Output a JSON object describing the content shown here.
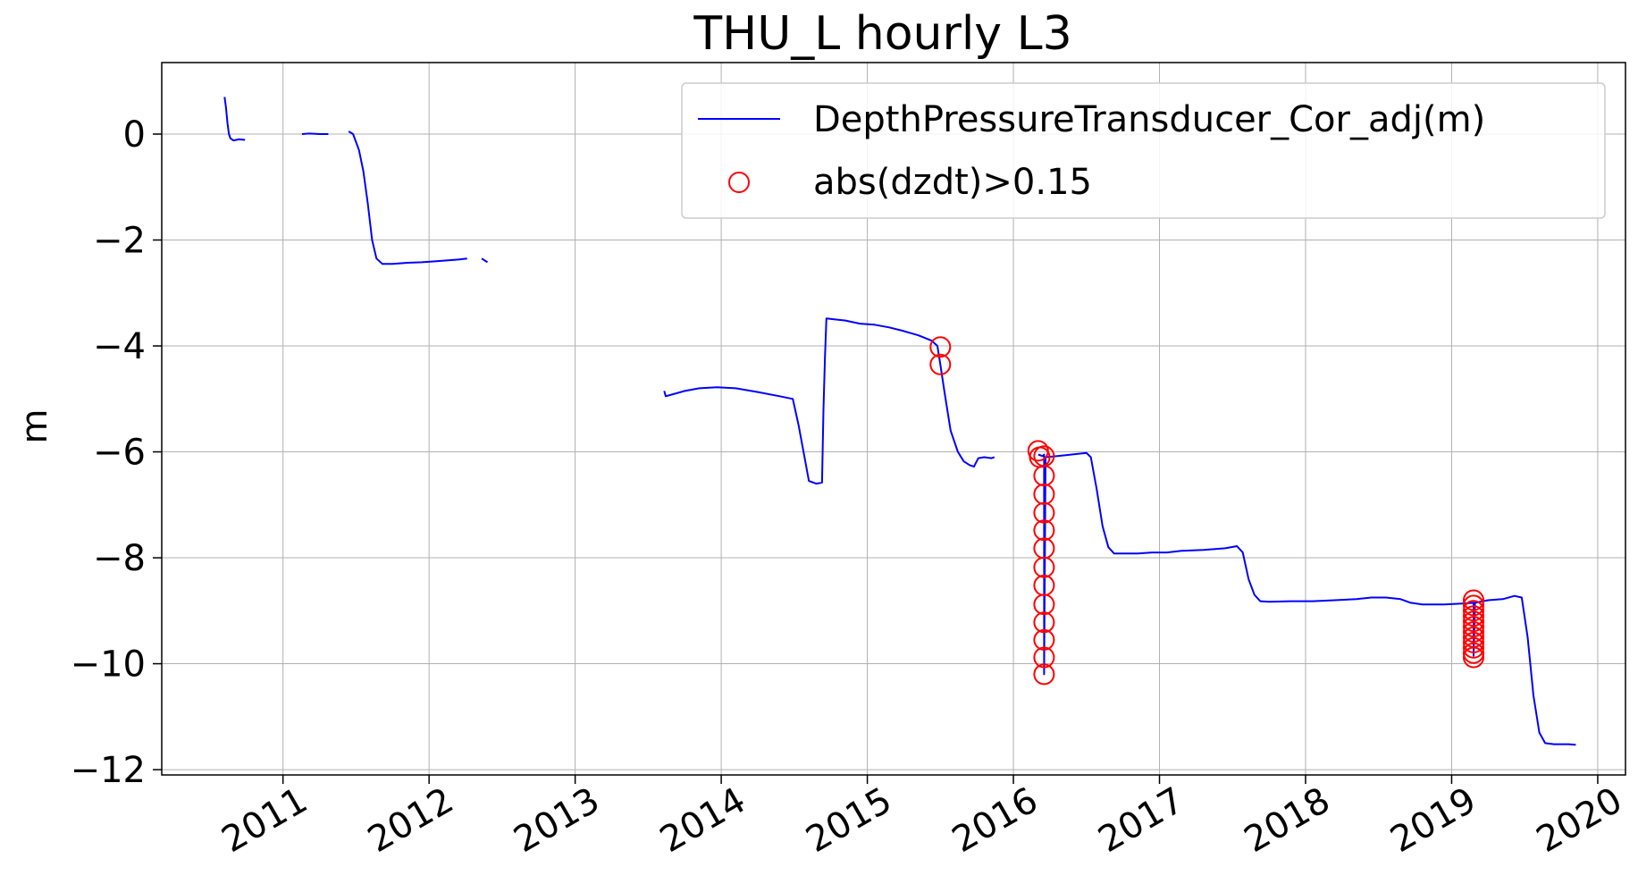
{
  "chart_data": {
    "type": "line",
    "title": "THU_L hourly L3",
    "xlabel": "",
    "ylabel": "m",
    "xlim": [
      2010.17,
      2020.19
    ],
    "ylim": [
      -12.1,
      1.35
    ],
    "x_ticks": [
      2011,
      2012,
      2013,
      2014,
      2015,
      2016,
      2017,
      2018,
      2019,
      2020
    ],
    "x_tick_labels": [
      "2011",
      "2012",
      "2013",
      "2014",
      "2015",
      "2016",
      "2017",
      "2018",
      "2019",
      "2020"
    ],
    "y_ticks": [
      0,
      -2,
      -4,
      -6,
      -8,
      -10,
      -12
    ],
    "y_tick_labels": [
      "0",
      "−2",
      "−4",
      "−6",
      "−8",
      "−10",
      "−12"
    ],
    "grid": true,
    "legend_position": "top-right",
    "colors": {
      "line": "#0000ff",
      "marker": "#ff0000",
      "grid": "#b0b0b0"
    },
    "series": [
      {
        "name": "DepthPressureTransducer_Cor_adj(m)",
        "style": "line",
        "segments": [
          [
            [
              2010.6,
              0.7
            ],
            [
              2010.61,
              0.5
            ],
            [
              2010.62,
              0.2
            ],
            [
              2010.63,
              0.0
            ],
            [
              2010.64,
              -0.08
            ],
            [
              2010.66,
              -0.12
            ],
            [
              2010.7,
              -0.1
            ],
            [
              2010.74,
              -0.11
            ]
          ],
          [
            [
              2011.13,
              0.0
            ],
            [
              2011.18,
              0.01
            ],
            [
              2011.25,
              0.0
            ],
            [
              2011.31,
              0.0
            ]
          ],
          [
            [
              2011.45,
              0.05
            ],
            [
              2011.48,
              0.0
            ],
            [
              2011.52,
              -0.3
            ],
            [
              2011.55,
              -0.7
            ],
            [
              2011.58,
              -1.3
            ],
            [
              2011.61,
              -2.0
            ],
            [
              2011.64,
              -2.35
            ],
            [
              2011.68,
              -2.45
            ],
            [
              2011.75,
              -2.45
            ],
            [
              2011.85,
              -2.43
            ],
            [
              2011.95,
              -2.42
            ],
            [
              2012.05,
              -2.4
            ],
            [
              2012.15,
              -2.38
            ],
            [
              2012.2,
              -2.37
            ],
            [
              2012.26,
              -2.35
            ]
          ],
          [
            [
              2012.36,
              -2.35
            ],
            [
              2012.4,
              -2.42
            ]
          ],
          [
            [
              2013.61,
              -4.85
            ],
            [
              2013.62,
              -4.95
            ],
            [
              2013.66,
              -4.92
            ],
            [
              2013.75,
              -4.85
            ],
            [
              2013.85,
              -4.8
            ],
            [
              2013.97,
              -4.78
            ],
            [
              2014.1,
              -4.8
            ],
            [
              2014.25,
              -4.87
            ],
            [
              2014.4,
              -4.95
            ],
            [
              2014.49,
              -5.0
            ],
            [
              2014.53,
              -5.5
            ],
            [
              2014.57,
              -6.1
            ],
            [
              2014.6,
              -6.55
            ],
            [
              2014.65,
              -6.6
            ],
            [
              2014.69,
              -6.58
            ],
            [
              2014.7,
              -5.2
            ],
            [
              2014.71,
              -4.2
            ],
            [
              2014.72,
              -3.48
            ],
            [
              2014.78,
              -3.5
            ],
            [
              2014.85,
              -3.52
            ],
            [
              2014.95,
              -3.58
            ],
            [
              2015.05,
              -3.6
            ],
            [
              2015.15,
              -3.65
            ],
            [
              2015.25,
              -3.72
            ],
            [
              2015.35,
              -3.8
            ],
            [
              2015.44,
              -3.9
            ],
            [
              2015.48,
              -4.0
            ],
            [
              2015.5,
              -4.35
            ],
            [
              2015.53,
              -4.9
            ],
            [
              2015.57,
              -5.6
            ],
            [
              2015.62,
              -6.0
            ],
            [
              2015.66,
              -6.18
            ],
            [
              2015.7,
              -6.25
            ],
            [
              2015.73,
              -6.28
            ],
            [
              2015.76,
              -6.12
            ],
            [
              2015.8,
              -6.1
            ],
            [
              2015.85,
              -6.12
            ],
            [
              2015.87,
              -6.1
            ]
          ],
          [
            [
              2016.17,
              -6.05
            ],
            [
              2016.2,
              -6.08
            ],
            [
              2016.21,
              -6.05
            ],
            [
              2016.21,
              -10.2
            ],
            [
              2016.22,
              -6.1
            ],
            [
              2016.3,
              -6.08
            ],
            [
              2016.4,
              -6.05
            ],
            [
              2016.5,
              -6.02
            ],
            [
              2016.53,
              -6.1
            ],
            [
              2016.57,
              -6.7
            ],
            [
              2016.61,
              -7.4
            ],
            [
              2016.65,
              -7.8
            ],
            [
              2016.69,
              -7.92
            ],
            [
              2016.75,
              -7.92
            ],
            [
              2016.85,
              -7.92
            ],
            [
              2016.95,
              -7.9
            ],
            [
              2017.05,
              -7.9
            ],
            [
              2017.15,
              -7.87
            ],
            [
              2017.3,
              -7.85
            ],
            [
              2017.45,
              -7.82
            ],
            [
              2017.53,
              -7.78
            ],
            [
              2017.57,
              -7.9
            ],
            [
              2017.61,
              -8.4
            ],
            [
              2017.65,
              -8.7
            ],
            [
              2017.69,
              -8.82
            ],
            [
              2017.75,
              -8.83
            ],
            [
              2017.9,
              -8.82
            ],
            [
              2018.05,
              -8.82
            ],
            [
              2018.2,
              -8.8
            ],
            [
              2018.35,
              -8.78
            ],
            [
              2018.45,
              -8.75
            ],
            [
              2018.55,
              -8.75
            ],
            [
              2018.65,
              -8.78
            ],
            [
              2018.72,
              -8.85
            ],
            [
              2018.8,
              -8.88
            ],
            [
              2018.95,
              -8.88
            ],
            [
              2019.1,
              -8.86
            ],
            [
              2019.15,
              -8.85
            ],
            [
              2019.15,
              -9.85
            ],
            [
              2019.16,
              -8.85
            ],
            [
              2019.25,
              -8.8
            ],
            [
              2019.35,
              -8.78
            ],
            [
              2019.43,
              -8.72
            ],
            [
              2019.48,
              -8.75
            ],
            [
              2019.52,
              -9.5
            ],
            [
              2019.56,
              -10.6
            ],
            [
              2019.6,
              -11.3
            ],
            [
              2019.64,
              -11.5
            ],
            [
              2019.7,
              -11.52
            ],
            [
              2019.8,
              -11.52
            ],
            [
              2019.85,
              -11.53
            ]
          ]
        ]
      },
      {
        "name": "abs(dzdt)>0.15",
        "style": "marker",
        "points": [
          [
            2015.5,
            -4.02
          ],
          [
            2015.5,
            -4.35
          ],
          [
            2016.17,
            -5.98
          ],
          [
            2016.18,
            -6.1
          ],
          [
            2016.21,
            -6.08
          ],
          [
            2016.21,
            -6.45
          ],
          [
            2016.21,
            -6.8
          ],
          [
            2016.21,
            -7.15
          ],
          [
            2016.21,
            -7.48
          ],
          [
            2016.21,
            -7.82
          ],
          [
            2016.21,
            -8.18
          ],
          [
            2016.21,
            -8.52
          ],
          [
            2016.21,
            -8.88
          ],
          [
            2016.21,
            -9.22
          ],
          [
            2016.21,
            -9.55
          ],
          [
            2016.21,
            -9.88
          ],
          [
            2016.21,
            -10.2
          ],
          [
            2019.15,
            -8.8
          ],
          [
            2019.15,
            -8.9
          ],
          [
            2019.15,
            -9.0
          ],
          [
            2019.15,
            -9.1
          ],
          [
            2019.15,
            -9.2
          ],
          [
            2019.15,
            -9.3
          ],
          [
            2019.15,
            -9.4
          ],
          [
            2019.15,
            -9.5
          ],
          [
            2019.15,
            -9.6
          ],
          [
            2019.15,
            -9.7
          ],
          [
            2019.15,
            -9.8
          ],
          [
            2019.15,
            -9.88
          ]
        ]
      }
    ]
  }
}
